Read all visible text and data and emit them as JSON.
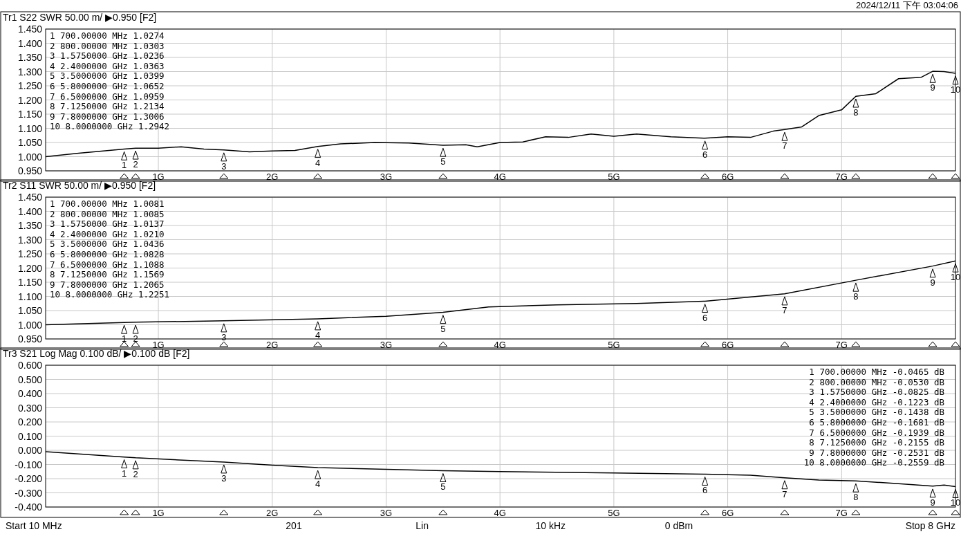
{
  "chart_data": [
    {
      "type": "line",
      "title": "Tr1 S22 SWR 50.00 m/ ▶0.950 [F2]",
      "subtitle": "2024/12/11 下午 03:04:06",
      "xlim": [
        0.01,
        8
      ],
      "ylim": [
        0.95,
        1.45
      ],
      "xticks": [
        {
          "value": 1,
          "label": "1G"
        },
        {
          "value": 2,
          "label": "2G"
        },
        {
          "value": 3,
          "label": "3G"
        },
        {
          "value": 4,
          "label": "4G"
        },
        {
          "value": 5,
          "label": "5G"
        },
        {
          "value": 6,
          "label": "6G"
        },
        {
          "value": 7,
          "label": "7G"
        }
      ],
      "yticks": [
        {
          "value": 0.95,
          "label": "0.950"
        },
        {
          "value": 1.0,
          "label": "1.000"
        },
        {
          "value": 1.05,
          "label": "1.050"
        },
        {
          "value": 1.1,
          "label": "1.100"
        },
        {
          "value": 1.15,
          "label": "1.150"
        },
        {
          "value": 1.2,
          "label": "1.200"
        },
        {
          "value": 1.25,
          "label": "1.250"
        },
        {
          "value": 1.3,
          "label": "1.300"
        },
        {
          "value": 1.35,
          "label": "1.350"
        },
        {
          "value": 1.4,
          "label": "1.400"
        },
        {
          "value": 1.45,
          "label": "1.450"
        }
      ],
      "grid": true,
      "series": [
        {
          "color": "#000000",
          "x": [
            0.01,
            0.3,
            0.7,
            0.8,
            1.0,
            1.2,
            1.4,
            1.575,
            1.8,
            2.0,
            2.2,
            2.4,
            2.6,
            2.9,
            3.2,
            3.5,
            3.7,
            3.8,
            4.0,
            4.2,
            4.4,
            4.6,
            4.8,
            5.0,
            5.2,
            5.5,
            5.8,
            6.0,
            6.2,
            6.4,
            6.5,
            6.65,
            6.8,
            7.0,
            7.125,
            7.3,
            7.5,
            7.7,
            7.8,
            7.9,
            8.0
          ],
          "values": [
            1.0,
            1.012,
            1.027,
            1.03,
            1.03,
            1.035,
            1.027,
            1.024,
            1.017,
            1.02,
            1.022,
            1.036,
            1.045,
            1.05,
            1.048,
            1.04,
            1.042,
            1.035,
            1.05,
            1.052,
            1.07,
            1.068,
            1.08,
            1.072,
            1.08,
            1.07,
            1.065,
            1.07,
            1.068,
            1.09,
            1.096,
            1.105,
            1.145,
            1.165,
            1.213,
            1.222,
            1.275,
            1.28,
            1.301,
            1.3,
            1.294
          ]
        }
      ],
      "annotations": [
        "1 700.00000 MHz  1.0274",
        "2 800.00000 MHz  1.0303",
        "3 1.5750000 GHz  1.0236",
        "4 2.4000000 GHz  1.0363",
        "5 3.5000000 GHz  1.0399",
        "6 5.8000000 GHz  1.0652",
        "7 6.5000000 GHz  1.0959",
        "8 7.1250000 GHz  1.2134",
        "9 7.8000000 GHz  1.3006",
        "10 8.0000000 GHz  1.2942",
        {
          "text": "1",
          "x": 0.7,
          "y": 1.0274
        },
        {
          "text": "2",
          "x": 0.8,
          "y": 1.0303
        },
        {
          "text": "3",
          "x": 1.575,
          "y": 1.0236
        },
        {
          "text": "4",
          "x": 2.4,
          "y": 1.0363
        },
        {
          "text": "5",
          "x": 3.5,
          "y": 1.0399
        },
        {
          "text": "6",
          "x": 5.8,
          "y": 1.0652
        },
        {
          "text": "7",
          "x": 6.5,
          "y": 1.0959
        },
        {
          "text": "8",
          "x": 7.125,
          "y": 1.2134
        },
        {
          "text": "9",
          "x": 7.8,
          "y": 1.3006
        },
        {
          "text": "10",
          "x": 8.0,
          "y": 1.2942
        }
      ]
    },
    {
      "type": "line",
      "title": "Tr2 S11 SWR 50.00 m/ ▶0.950 [F2]",
      "xlim": [
        0.01,
        8
      ],
      "ylim": [
        0.95,
        1.45
      ],
      "xticks": [
        {
          "value": 1,
          "label": "1G"
        },
        {
          "value": 2,
          "label": "2G"
        },
        {
          "value": 3,
          "label": "3G"
        },
        {
          "value": 4,
          "label": "4G"
        },
        {
          "value": 5,
          "label": "5G"
        },
        {
          "value": 6,
          "label": "6G"
        },
        {
          "value": 7,
          "label": "7G"
        }
      ],
      "yticks": [
        {
          "value": 0.95,
          "label": "0.950"
        },
        {
          "value": 1.0,
          "label": "1.000"
        },
        {
          "value": 1.05,
          "label": "1.050"
        },
        {
          "value": 1.1,
          "label": "1.100"
        },
        {
          "value": 1.15,
          "label": "1.150"
        },
        {
          "value": 1.2,
          "label": "1.200"
        },
        {
          "value": 1.25,
          "label": "1.250"
        },
        {
          "value": 1.3,
          "label": "1.300"
        },
        {
          "value": 1.35,
          "label": "1.350"
        },
        {
          "value": 1.4,
          "label": "1.400"
        },
        {
          "value": 1.45,
          "label": "1.450"
        }
      ],
      "grid": true,
      "series": [
        {
          "color": "#000000",
          "x": [
            0.01,
            0.7,
            0.8,
            1.575,
            2.4,
            3.0,
            3.5,
            3.9,
            4.5,
            5.2,
            5.8,
            6.5,
            7.125,
            7.8,
            8.0
          ],
          "values": [
            1.0,
            1.008,
            1.009,
            1.014,
            1.021,
            1.03,
            1.044,
            1.063,
            1.07,
            1.075,
            1.083,
            1.109,
            1.157,
            1.207,
            1.225
          ]
        }
      ],
      "annotations": [
        "1 700.00000 MHz  1.0081",
        "2 800.00000 MHz  1.0085",
        "3 1.5750000 GHz  1.0137",
        "4 2.4000000 GHz  1.0210",
        "5 3.5000000 GHz  1.0436",
        "6 5.8000000 GHz  1.0828",
        "7 6.5000000 GHz  1.1088",
        "8 7.1250000 GHz  1.1569",
        "9 7.8000000 GHz  1.2065",
        "10 8.0000000 GHz  1.2251",
        {
          "text": "1",
          "x": 0.7,
          "y": 1.0081
        },
        {
          "text": "2",
          "x": 0.8,
          "y": 1.0085
        },
        {
          "text": "3",
          "x": 1.575,
          "y": 1.0137
        },
        {
          "text": "4",
          "x": 2.4,
          "y": 1.021
        },
        {
          "text": "5",
          "x": 3.5,
          "y": 1.0436
        },
        {
          "text": "6",
          "x": 5.8,
          "y": 1.0828
        },
        {
          "text": "7",
          "x": 6.5,
          "y": 1.1088
        },
        {
          "text": "8",
          "x": 7.125,
          "y": 1.1569
        },
        {
          "text": "9",
          "x": 7.8,
          "y": 1.2065
        },
        {
          "text": "10",
          "x": 8.0,
          "y": 1.2251
        }
      ]
    },
    {
      "type": "line",
      "title": "Tr3 S21 Log Mag 0.100 dB/ ▶0.100 dB [F2]",
      "xlim": [
        0.01,
        8
      ],
      "ylim": [
        -0.4,
        0.6
      ],
      "xticks": [
        {
          "value": 1,
          "label": "1G"
        },
        {
          "value": 2,
          "label": "2G"
        },
        {
          "value": 3,
          "label": "3G"
        },
        {
          "value": 4,
          "label": "4G"
        },
        {
          "value": 5,
          "label": "5G"
        },
        {
          "value": 6,
          "label": "6G"
        },
        {
          "value": 7,
          "label": "7G"
        }
      ],
      "yticks": [
        {
          "value": -0.4,
          "label": "-0.400"
        },
        {
          "value": -0.3,
          "label": "-0.300"
        },
        {
          "value": -0.2,
          "label": "-0.200"
        },
        {
          "value": -0.1,
          "label": "-0.100"
        },
        {
          "value": 0,
          "label": "0.000"
        },
        {
          "value": 0.1,
          "label": "0.100"
        },
        {
          "value": 0.2,
          "label": "0.200"
        },
        {
          "value": 0.3,
          "label": "0.300"
        },
        {
          "value": 0.4,
          "label": "0.400"
        },
        {
          "value": 0.5,
          "label": "0.500"
        },
        {
          "value": 0.6,
          "label": "0.600"
        }
      ],
      "grid": true,
      "series": [
        {
          "color": "#000000",
          "x": [
            0.01,
            0.7,
            0.8,
            1.575,
            2.0,
            2.4,
            3.5,
            4.0,
            5.0,
            5.8,
            6.2,
            6.5,
            6.8,
            7.125,
            7.5,
            7.8,
            7.9,
            8.0
          ],
          "values": [
            -0.01,
            -0.047,
            -0.053,
            -0.083,
            -0.105,
            -0.122,
            -0.144,
            -0.15,
            -0.16,
            -0.168,
            -0.175,
            -0.194,
            -0.21,
            -0.216,
            -0.235,
            -0.253,
            -0.245,
            -0.256
          ]
        }
      ],
      "annotations": [
        "1 700.00000 MHz -0.0465 dB",
        "2 800.00000 MHz -0.0530 dB",
        "3 1.5750000 GHz -0.0825 dB",
        "4 2.4000000 GHz -0.1223 dB",
        "5 3.5000000 GHz -0.1438 dB",
        "6 5.8000000 GHz -0.1681 dB",
        "7 6.5000000 GHz -0.1939 dB",
        "8 7.1250000 GHz -0.2155 dB",
        "9 7.8000000 GHz -0.2531 dB",
        "10 8.0000000 GHz -0.2559 dB",
        {
          "text": "1",
          "x": 0.7,
          "y": -0.0465
        },
        {
          "text": "2",
          "x": 0.8,
          "y": -0.053
        },
        {
          "text": "3",
          "x": 1.575,
          "y": -0.0825
        },
        {
          "text": "4",
          "x": 2.4,
          "y": -0.1223
        },
        {
          "text": "5",
          "x": 3.5,
          "y": -0.1438
        },
        {
          "text": "6",
          "x": 5.8,
          "y": -0.1681
        },
        {
          "text": "7",
          "x": 6.5,
          "y": -0.1939
        },
        {
          "text": "8",
          "x": 7.125,
          "y": -0.2155
        },
        {
          "text": "9",
          "x": 7.8,
          "y": -0.2531
        },
        {
          "text": "10",
          "x": 8.0,
          "y": -0.2559
        }
      ]
    },
    {
      "type": "other",
      "annotations": [
        "Start 10 MHz",
        "201",
        "Lin",
        "10 kHz",
        "0 dBm",
        "Stop 8 GHz"
      ]
    }
  ]
}
